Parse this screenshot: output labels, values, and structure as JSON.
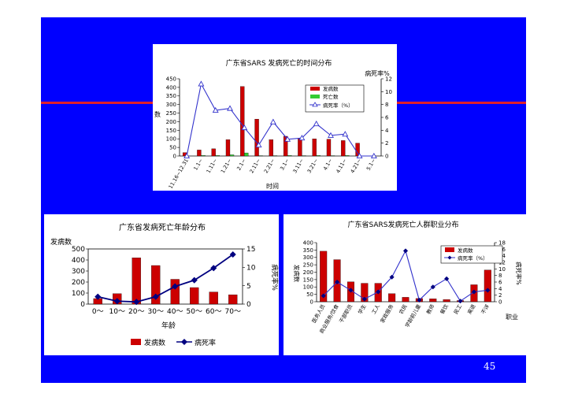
{
  "page_number": "45",
  "colors": {
    "slide_background": "#0000ff",
    "accent_line": "#e0202a",
    "bar_red": "#cc0000",
    "bar_green": "#33cc33",
    "line_blue": "#3333cc",
    "line_navy": "#000080"
  },
  "chart_data": [
    {
      "type": "bar",
      "title": "广东省SARS 发病死亡的时间分布",
      "xlabel": "时间",
      "ylabel": "数",
      "y2label": "病死率%",
      "ylim": [
        0,
        450
      ],
      "y2lim": [
        0,
        12
      ],
      "yticks": [
        "0",
        "50",
        "100",
        "150",
        "200",
        "250",
        "300",
        "350",
        "400",
        "450"
      ],
      "y2ticks": [
        "0",
        "2",
        "4",
        "6",
        "8",
        "10",
        "12"
      ],
      "categories": [
        "11.16~12.31",
        "1.1~",
        "1.11~",
        "1.21~",
        "2.1~",
        "2.11~",
        "2.21~",
        "3.1~",
        "3.11~",
        "3.21~",
        "4.1~",
        "4.11~",
        "4.21~",
        "5.1~"
      ],
      "legend_position": "top-right",
      "series": [
        {
          "name": "发病数",
          "kind": "bar",
          "values": [
            20,
            35,
            42,
            95,
            405,
            215,
            95,
            115,
            100,
            100,
            98,
            90,
            75,
            0
          ]
        },
        {
          "name": "死亡数",
          "kind": "bar",
          "values": [
            0,
            3,
            3,
            7,
            18,
            2,
            2,
            3,
            2,
            3,
            2,
            3,
            1,
            0
          ]
        },
        {
          "name": "病死率（%）",
          "kind": "line",
          "axis": "right",
          "values": [
            0,
            11.2,
            7.1,
            7.4,
            4.4,
            1.7,
            5.3,
            2.6,
            2.8,
            5.0,
            3.2,
            3.4,
            0,
            0
          ]
        }
      ]
    },
    {
      "type": "bar",
      "title": "广东省发病死亡年龄分布",
      "xlabel": "年龄",
      "ylabel": "发病数",
      "y2label": "病死率%",
      "ylim": [
        0,
        500
      ],
      "y2lim": [
        0,
        15
      ],
      "yticks": [
        "0",
        "100",
        "200",
        "300",
        "400",
        "500"
      ],
      "y2ticks": [
        "0",
        "5",
        "10",
        "15"
      ],
      "categories": [
        "0～",
        "10～",
        "20～",
        "30～",
        "40～",
        "50～",
        "60～",
        "70～"
      ],
      "legend_position": "bottom",
      "series": [
        {
          "name": "发病数",
          "kind": "bar",
          "values": [
            50,
            95,
            420,
            350,
            225,
            150,
            110,
            85
          ]
        },
        {
          "name": "病死率",
          "kind": "line",
          "axis": "right",
          "values": [
            2,
            0.8,
            0.6,
            2,
            4.8,
            6.5,
            9.8,
            13.5
          ]
        }
      ]
    },
    {
      "type": "bar",
      "title": "广东省SARS发病死亡人群职业分布",
      "xlabel": "职业",
      "ylabel": "发病数",
      "y2label": "病死率%",
      "ylim": [
        0,
        400
      ],
      "y2lim": [
        0,
        18
      ],
      "yticks": [
        "0",
        "50",
        "100",
        "150",
        "200",
        "250",
        "300",
        "350",
        "400"
      ],
      "y2ticks": [
        "0",
        "2",
        "4",
        "6",
        "8",
        "10",
        "12",
        "14",
        "16",
        "18"
      ],
      "categories": [
        "医务人员",
        "商业服务/饮食",
        "干部职员",
        "学生",
        "工人",
        "家政服务",
        "农民",
        "学龄前儿童",
        "教师",
        "餐饮",
        "民工",
        "离退",
        "不详"
      ],
      "legend_position": "top-right",
      "series": [
        {
          "name": "发病数",
          "kind": "bar",
          "values": [
            342,
            285,
            135,
            125,
            125,
            55,
            30,
            22,
            20,
            15,
            8,
            115,
            215
          ]
        },
        {
          "name": "病死率（%）",
          "kind": "line",
          "axis": "right",
          "values": [
            1.8,
            6,
            3.5,
            0.8,
            3,
            7.5,
            15.5,
            0.5,
            4.5,
            7,
            0.2,
            3,
            3.5
          ]
        }
      ]
    }
  ]
}
